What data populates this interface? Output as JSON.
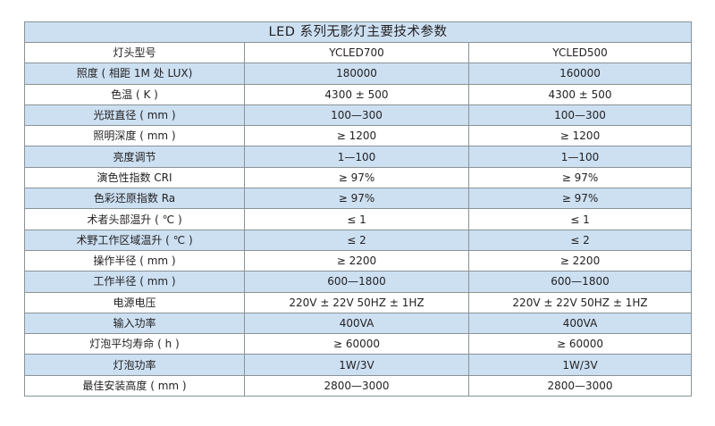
{
  "table": {
    "title": "LED 系列无影灯主要技术参数",
    "header": {
      "label": "灯头型号",
      "col1": "YCLED700",
      "col2": "YCLED500"
    },
    "rows": [
      {
        "label": "照度 ( 相距 1M 处 LUX)",
        "col1": "180000",
        "col2": "160000"
      },
      {
        "label": "色温 ( K )",
        "col1": "4300 ± 500",
        "col2": "4300 ± 500"
      },
      {
        "label": "光斑直径 ( mm )",
        "col1": "100—300",
        "col2": "100—300"
      },
      {
        "label": "照明深度 ( mm )",
        "col1": "≥ 1200",
        "col2": "≥ 1200"
      },
      {
        "label": "亮度调节",
        "col1": "1—100",
        "col2": "1—100"
      },
      {
        "label": "演色性指数 CRI",
        "col1": "≥ 97%",
        "col2": "≥ 97%"
      },
      {
        "label": "色彩还原指数 Ra",
        "col1": "≥ 97%",
        "col2": "≥ 97%"
      },
      {
        "label": "术者头部温升 ( ℃ )",
        "col1": "≤ 1",
        "col2": "≤ 1"
      },
      {
        "label": "术野工作区域温升 ( ℃ )",
        "col1": "≤ 2",
        "col2": "≤ 2"
      },
      {
        "label": "操作半径 ( mm )",
        "col1": "≥ 2200",
        "col2": "≥ 2200"
      },
      {
        "label": "工作半径 ( mm )",
        "col1": "600—1800",
        "col2": "600—1800"
      },
      {
        "label": "电源电压",
        "col1": "220V ± 22V 50HZ ± 1HZ",
        "col2": "220V ± 22V 50HZ ± 1HZ"
      },
      {
        "label": "输入功率",
        "col1": "400VA",
        "col2": "400VA"
      },
      {
        "label": "灯泡平均寿命 ( h )",
        "col1": "≥ 60000",
        "col2": "≥ 60000"
      },
      {
        "label": "灯泡功率",
        "col1": "1W/3V",
        "col2": "1W/3V"
      },
      {
        "label": "最佳安装高度 ( mm )",
        "col1": "2800—3000",
        "col2": "2800—3000"
      }
    ],
    "colors": {
      "band": "#cce0f2",
      "border": "#8a9296",
      "text": "#231f20"
    }
  }
}
